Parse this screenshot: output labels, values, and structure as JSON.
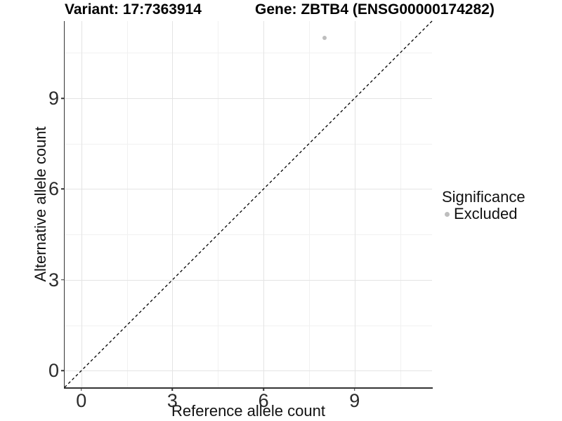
{
  "colors": {
    "axis": "#333333",
    "tick_text": "#2b2b2b",
    "grid_major": "#e4e4e4",
    "grid_minor": "#f1f1f1",
    "dashed_line": "#000000",
    "excluded_gray": "#bebebe",
    "background": "#ffffff"
  },
  "chart_data": {
    "type": "scatter",
    "titles": {
      "left": "Variant: 17:7363914",
      "right": "Gene: ZBTB4 (ENSG00000174282)"
    },
    "xlabel": "Reference allele count",
    "ylabel": "Alternative allele count",
    "xlim": [
      -0.55,
      11.55
    ],
    "ylim": [
      -0.55,
      11.55
    ],
    "x_axis": {
      "ticks": [
        0,
        3,
        6,
        9
      ],
      "labels": [
        "0",
        "3",
        "6",
        "9"
      ],
      "minor": [
        1.5,
        4.5,
        7.5,
        10.5
      ]
    },
    "y_axis": {
      "ticks": [
        0,
        3,
        6,
        9
      ],
      "labels": [
        "0",
        "3",
        "6",
        "9"
      ],
      "minor": [
        1.5,
        4.5,
        7.5,
        10.5
      ]
    },
    "grid": true,
    "identity_line": {
      "x1": -0.55,
      "y1": -0.55,
      "x2": 11.55,
      "y2": 11.55,
      "style": "dashed"
    },
    "series": [
      {
        "name": "Excluded",
        "color": "#bebebe",
        "points": [
          {
            "x": 8,
            "y": 11
          }
        ]
      }
    ],
    "legend": {
      "title": "Significance",
      "position": "right",
      "items": [
        {
          "label": "Excluded",
          "color": "#bebebe"
        }
      ]
    }
  }
}
